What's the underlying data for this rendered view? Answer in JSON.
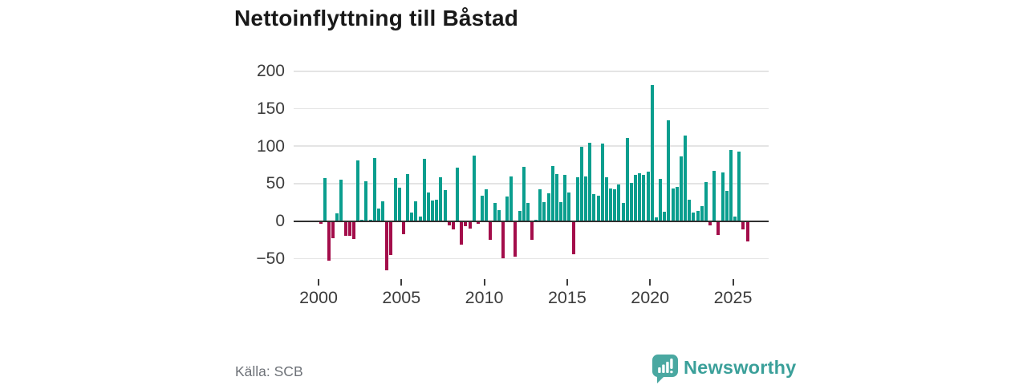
{
  "header": {
    "title": "Nettoinflyttning till Båstad"
  },
  "footer": {
    "source_label": "Källa: SCB",
    "brand_name": "Newsworthy"
  },
  "chart_data": {
    "type": "bar",
    "title": "Nettoinflyttning till Båstad",
    "x_unit": "quarter",
    "period_start": "2000Q1",
    "period_end": "2025Q4",
    "values_by_year": {
      "2000": [
        -2,
        57,
        -52,
        -22
      ],
      "2001": [
        10,
        55,
        -18,
        -19
      ],
      "2002": [
        -23,
        81,
        0,
        53
      ],
      "2003": [
        0,
        84,
        17,
        26
      ],
      "2004": [
        -65,
        -44,
        57,
        45
      ],
      "2005": [
        -16,
        63,
        11,
        26
      ],
      "2006": [
        6,
        83,
        38,
        27
      ],
      "2007": [
        29,
        58,
        41,
        -5
      ],
      "2008": [
        -10,
        71,
        -30,
        -6
      ],
      "2009": [
        -9,
        87,
        -3,
        34
      ],
      "2010": [
        42,
        -24,
        24,
        15
      ],
      "2011": [
        -49,
        33,
        60,
        -46
      ],
      "2012": [
        14,
        72,
        24,
        -24
      ],
      "2013": [
        0,
        42,
        25,
        37
      ],
      "2014": [
        73,
        63,
        25,
        62
      ],
      "2015": [
        38,
        -43,
        58,
        99
      ],
      "2016": [
        60,
        105,
        36,
        34
      ],
      "2017": [
        103,
        58,
        44,
        43
      ],
      "2018": [
        49,
        24,
        111,
        51
      ],
      "2019": [
        62,
        64,
        62,
        66
      ],
      "2020": [
        182,
        5,
        56,
        13
      ],
      "2021": [
        135,
        44,
        46,
        86
      ],
      "2022": [
        114,
        29,
        11,
        14
      ],
      "2023": [
        20,
        52,
        -5,
        67
      ],
      "2024": [
        -17,
        65,
        40,
        95
      ],
      "2025": [
        6,
        93,
        -10,
        -26
      ]
    },
    "y_ticks": [
      {
        "value": 200,
        "label": "200"
      },
      {
        "value": 150,
        "label": "150"
      },
      {
        "value": 100,
        "label": "100"
      },
      {
        "value": 50,
        "label": "50"
      },
      {
        "value": 0,
        "label": "0"
      },
      {
        "value": -50,
        "label": "−50"
      }
    ],
    "x_ticks": [
      {
        "year": 2000,
        "label": "2000"
      },
      {
        "year": 2005,
        "label": "2005"
      },
      {
        "year": 2010,
        "label": "2010"
      },
      {
        "year": 2015,
        "label": "2015"
      },
      {
        "year": 2020,
        "label": "2020"
      },
      {
        "year": 2025,
        "label": "2025"
      }
    ],
    "ylim": [
      -50,
      200
    ],
    "grid": true,
    "legend": false,
    "colors": {
      "positive": "#0a9e8e",
      "negative": "#a30d4a",
      "gridline": "#e4e4e4",
      "zero_line": "#303030",
      "axis_text": "#3c3c3c",
      "title_text": "#191919",
      "source_text": "#6e7278",
      "brand_teal": "#4aa8a1",
      "brand_text": "#3ba09a"
    }
  }
}
